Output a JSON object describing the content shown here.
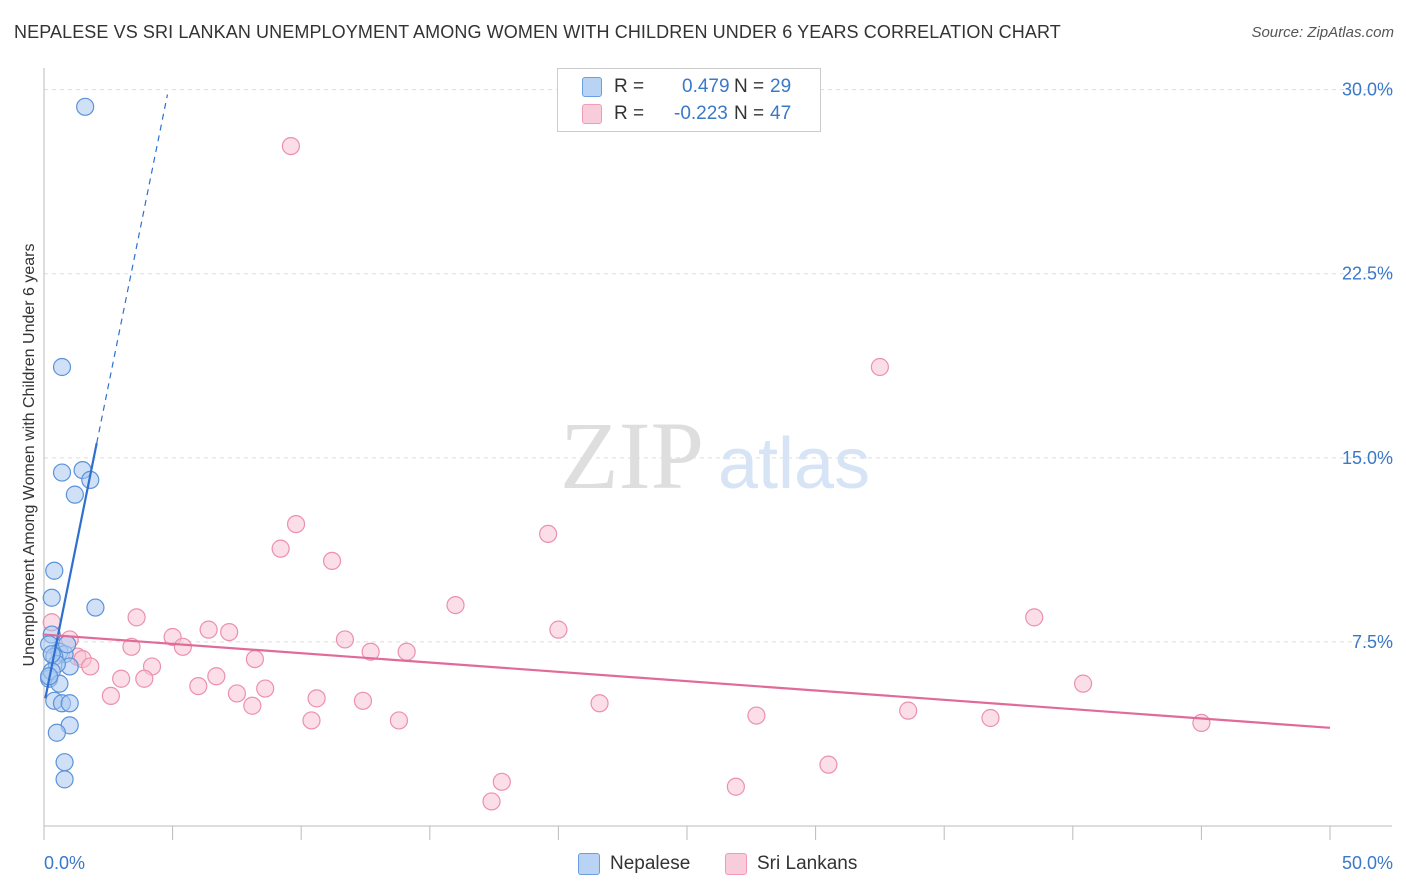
{
  "title": "NEPALESE VS SRI LANKAN UNEMPLOYMENT AMONG WOMEN WITH CHILDREN UNDER 6 YEARS CORRELATION CHART",
  "source": "Source: ZipAtlas.com",
  "watermark": {
    "zip": "ZIP",
    "atlas": "atlas"
  },
  "legend": {
    "rows": [
      {
        "r_label": "R =",
        "r_value": "0.479",
        "n_label": "N =",
        "n_value": "29"
      },
      {
        "r_label": "R =",
        "r_value": "-0.223",
        "n_label": "N =",
        "n_value": "47"
      }
    ]
  },
  "bottom_legend": {
    "nepalese": "Nepalese",
    "srilankans": "Sri Lankans"
  },
  "colors": {
    "blue_fill": "#a9c8f0",
    "blue_stroke": "#5b93db",
    "blue_line": "#2f6fd0",
    "pink_fill": "#f7c3d3",
    "pink_stroke": "#eb91ad",
    "pink_line": "#e06b98",
    "axis_text": "#3a78c8",
    "grid": "#dddddd"
  },
  "chart_data": {
    "type": "scatter",
    "title": "NEPALESE VS SRI LANKAN UNEMPLOYMENT AMONG WOMEN WITH CHILDREN UNDER 6 YEARS CORRELATION CHART",
    "xlabel": "",
    "ylabel": "Unemployment Among Women with Children Under 6 years",
    "xlim": [
      0,
      50
    ],
    "ylim": [
      0,
      30.8
    ],
    "x_tick_labels": [
      {
        "value": 0,
        "label": "0.0%"
      },
      {
        "value": 50,
        "label": "50.0%"
      }
    ],
    "x_minor_ticks": [
      5,
      10,
      15,
      20,
      25,
      30,
      35,
      40,
      45
    ],
    "y_ticks": [
      {
        "value": 7.5,
        "label": "7.5%"
      },
      {
        "value": 15,
        "label": "15.0%"
      },
      {
        "value": 22.5,
        "label": "22.5%"
      },
      {
        "value": 30,
        "label": "30.0%"
      }
    ],
    "series": [
      {
        "name": "Nepalese",
        "points": [
          [
            1.6,
            29.3
          ],
          [
            0.7,
            18.7
          ],
          [
            0.7,
            14.4
          ],
          [
            1.5,
            14.5
          ],
          [
            1.8,
            14.1
          ],
          [
            1.2,
            13.5
          ],
          [
            0.4,
            10.4
          ],
          [
            2.0,
            8.9
          ],
          [
            0.3,
            9.3
          ],
          [
            0.3,
            7.8
          ],
          [
            0.2,
            7.4
          ],
          [
            0.6,
            7.1
          ],
          [
            0.8,
            7.0
          ],
          [
            0.9,
            7.4
          ],
          [
            0.4,
            6.9
          ],
          [
            1.0,
            6.5
          ],
          [
            0.5,
            6.6
          ],
          [
            0.2,
            6.0
          ],
          [
            0.3,
            6.3
          ],
          [
            0.6,
            5.8
          ],
          [
            0.2,
            6.1
          ],
          [
            0.4,
            5.1
          ],
          [
            0.7,
            5.0
          ],
          [
            1.0,
            5.0
          ],
          [
            1.0,
            4.1
          ],
          [
            0.5,
            3.8
          ],
          [
            0.8,
            2.6
          ],
          [
            0.8,
            1.9
          ],
          [
            0.3,
            7.0
          ]
        ],
        "trend": {
          "x": [
            0.05,
            2.05
          ],
          "y": [
            5.2,
            15.6
          ],
          "dashed_to": [
            4.8,
            29.8
          ]
        }
      },
      {
        "name": "Sri Lankans",
        "points": [
          [
            9.6,
            27.7
          ],
          [
            0.3,
            8.3
          ],
          [
            9.8,
            12.3
          ],
          [
            19.6,
            11.9
          ],
          [
            9.2,
            11.3
          ],
          [
            11.2,
            10.8
          ],
          [
            16.0,
            9.0
          ],
          [
            32.5,
            18.7
          ],
          [
            3.6,
            8.5
          ],
          [
            6.4,
            8.0
          ],
          [
            7.2,
            7.9
          ],
          [
            5.0,
            7.7
          ],
          [
            11.7,
            7.6
          ],
          [
            20.0,
            8.0
          ],
          [
            38.5,
            8.5
          ],
          [
            1.0,
            7.6
          ],
          [
            1.3,
            6.9
          ],
          [
            1.5,
            6.8
          ],
          [
            3.4,
            7.3
          ],
          [
            5.4,
            7.3
          ],
          [
            12.7,
            7.1
          ],
          [
            14.1,
            7.1
          ],
          [
            8.2,
            6.8
          ],
          [
            1.8,
            6.5
          ],
          [
            4.2,
            6.5
          ],
          [
            3.0,
            6.0
          ],
          [
            3.9,
            6.0
          ],
          [
            6.7,
            6.1
          ],
          [
            6.0,
            5.7
          ],
          [
            8.6,
            5.6
          ],
          [
            7.5,
            5.4
          ],
          [
            2.6,
            5.3
          ],
          [
            8.1,
            4.9
          ],
          [
            10.6,
            5.2
          ],
          [
            12.4,
            5.1
          ],
          [
            21.6,
            5.0
          ],
          [
            40.4,
            5.8
          ],
          [
            10.4,
            4.3
          ],
          [
            13.8,
            4.3
          ],
          [
            27.7,
            4.5
          ],
          [
            33.6,
            4.7
          ],
          [
            36.8,
            4.4
          ],
          [
            45.0,
            4.2
          ],
          [
            30.5,
            2.5
          ],
          [
            17.8,
            1.8
          ],
          [
            26.9,
            1.6
          ],
          [
            17.4,
            1.0
          ]
        ],
        "trend": {
          "x": [
            0.0,
            50.0
          ],
          "y": [
            7.8,
            4.0
          ]
        }
      }
    ]
  }
}
